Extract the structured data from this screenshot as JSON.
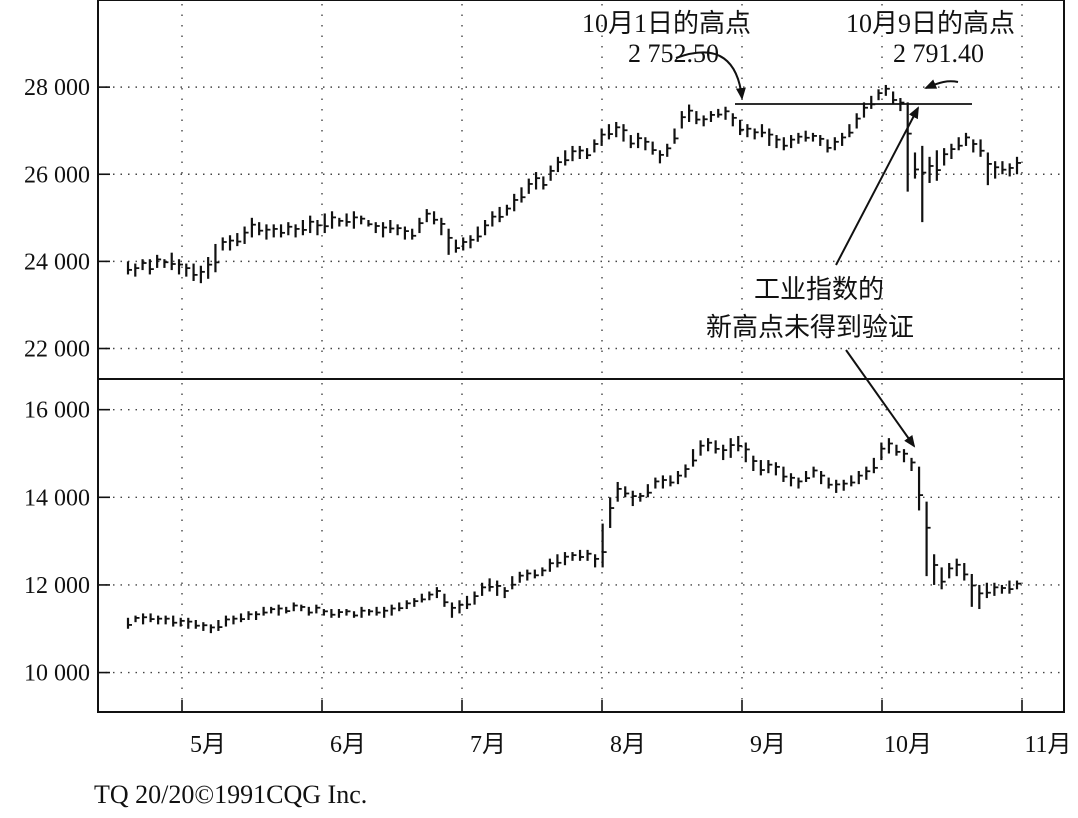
{
  "chart_data": [
    {
      "type": "bar",
      "subtype": "ohlc-range",
      "panel": "top",
      "title": "",
      "ylim": [
        21300,
        30000
      ],
      "yticks": [
        22000,
        24000,
        26000,
        28000
      ],
      "ytick_labels": [
        "22 000",
        "24 000",
        "26 000",
        "28 000"
      ],
      "grid": true,
      "bars": [
        [
          23700,
          24000
        ],
        [
          23650,
          23950
        ],
        [
          23800,
          24050
        ],
        [
          23700,
          24050
        ],
        [
          23850,
          24150
        ],
        [
          23850,
          24050
        ],
        [
          23800,
          24200
        ],
        [
          23700,
          24050
        ],
        [
          23650,
          23950
        ],
        [
          23550,
          23950
        ],
        [
          23500,
          23900
        ],
        [
          23600,
          24100
        ],
        [
          23750,
          24400
        ],
        [
          24250,
          24550
        ],
        [
          24250,
          24600
        ],
        [
          24350,
          24650
        ],
        [
          24400,
          24800
        ],
        [
          24550,
          25000
        ],
        [
          24600,
          24900
        ],
        [
          24500,
          24850
        ],
        [
          24550,
          24850
        ],
        [
          24550,
          24850
        ],
        [
          24600,
          24900
        ],
        [
          24550,
          24850
        ],
        [
          24600,
          24950
        ],
        [
          24650,
          25050
        ],
        [
          24600,
          24950
        ],
        [
          24650,
          25100
        ],
        [
          24750,
          25150
        ],
        [
          24800,
          25000
        ],
        [
          24800,
          25100
        ],
        [
          24750,
          25150
        ],
        [
          24850,
          25050
        ],
        [
          24800,
          24950
        ],
        [
          24650,
          24900
        ],
        [
          24550,
          24900
        ],
        [
          24650,
          24950
        ],
        [
          24600,
          24850
        ],
        [
          24500,
          24800
        ],
        [
          24500,
          24750
        ],
        [
          24650,
          25000
        ],
        [
          24900,
          25200
        ],
        [
          24850,
          25150
        ],
        [
          24600,
          25000
        ],
        [
          24150,
          24750
        ],
        [
          24200,
          24500
        ],
        [
          24250,
          24550
        ],
        [
          24300,
          24600
        ],
        [
          24450,
          24800
        ],
        [
          24600,
          24950
        ],
        [
          24800,
          25150
        ],
        [
          24900,
          25250
        ],
        [
          25050,
          25300
        ],
        [
          25150,
          25550
        ],
        [
          25350,
          25700
        ],
        [
          25550,
          25900
        ],
        [
          25650,
          26050
        ],
        [
          25650,
          25950
        ],
        [
          25850,
          26200
        ],
        [
          26050,
          26400
        ],
        [
          26200,
          26550
        ],
        [
          26300,
          26650
        ],
        [
          26350,
          26650
        ],
        [
          26350,
          26600
        ],
        [
          26500,
          26800
        ],
        [
          26650,
          27050
        ],
        [
          26800,
          27150
        ],
        [
          26850,
          27200
        ],
        [
          26750,
          27150
        ],
        [
          26600,
          26900
        ],
        [
          26600,
          26950
        ],
        [
          26550,
          26850
        ],
        [
          26450,
          26750
        ],
        [
          26250,
          26550
        ],
        [
          26400,
          26700
        ],
        [
          26700,
          27050
        ],
        [
          27050,
          27450
        ],
        [
          27200,
          27600
        ],
        [
          27150,
          27450
        ],
        [
          27100,
          27350
        ],
        [
          27200,
          27450
        ],
        [
          27300,
          27500
        ],
        [
          27250,
          27550
        ],
        [
          27100,
          27400
        ],
        [
          26900,
          27250
        ],
        [
          26850,
          27150
        ],
        [
          26800,
          27050
        ],
        [
          26850,
          27150
        ],
        [
          26650,
          27050
        ],
        [
          26600,
          26900
        ],
        [
          26550,
          26850
        ],
        [
          26600,
          26900
        ],
        [
          26700,
          26950
        ],
        [
          26750,
          27000
        ],
        [
          26750,
          26950
        ],
        [
          26650,
          26900
        ],
        [
          26500,
          26800
        ],
        [
          26550,
          26850
        ],
        [
          26650,
          26950
        ],
        [
          26850,
          27150
        ],
        [
          27050,
          27400
        ],
        [
          27300,
          27650
        ],
        [
          27500,
          27800
        ],
        [
          27700,
          27950
        ],
        [
          27800,
          28050
        ],
        [
          27600,
          27900
        ],
        [
          27450,
          27750
        ],
        [
          25600,
          27650
        ],
        [
          25900,
          26500
        ],
        [
          24900,
          26650
        ],
        [
          25800,
          26400
        ],
        [
          25850,
          26550
        ],
        [
          26200,
          26600
        ],
        [
          26350,
          26700
        ],
        [
          26550,
          26850
        ],
        [
          26650,
          26950
        ],
        [
          26500,
          26800
        ],
        [
          26400,
          26800
        ],
        [
          25750,
          26500
        ],
        [
          25900,
          26300
        ],
        [
          26000,
          26300
        ],
        [
          25950,
          26250
        ],
        [
          26000,
          26400
        ]
      ]
    },
    {
      "type": "bar",
      "subtype": "ohlc-range",
      "panel": "bottom",
      "title": "",
      "ylim": [
        9100,
        16700
      ],
      "yticks": [
        10000,
        12000,
        14000,
        16000
      ],
      "ytick_labels": [
        "10 000",
        "12 000",
        "14 000",
        "16 000"
      ],
      "grid": true,
      "bars": [
        [
          11000,
          11250
        ],
        [
          11150,
          11300
        ],
        [
          11100,
          11350
        ],
        [
          11150,
          11350
        ],
        [
          11100,
          11300
        ],
        [
          11100,
          11300
        ],
        [
          11050,
          11300
        ],
        [
          11050,
          11250
        ],
        [
          11000,
          11250
        ],
        [
          11000,
          11200
        ],
        [
          10950,
          11150
        ],
        [
          10900,
          11100
        ],
        [
          10950,
          11200
        ],
        [
          11050,
          11300
        ],
        [
          11100,
          11300
        ],
        [
          11150,
          11350
        ],
        [
          11200,
          11400
        ],
        [
          11200,
          11400
        ],
        [
          11300,
          11500
        ],
        [
          11350,
          11500
        ],
        [
          11300,
          11550
        ],
        [
          11350,
          11500
        ],
        [
          11400,
          11600
        ],
        [
          11400,
          11550
        ],
        [
          11300,
          11500
        ],
        [
          11350,
          11550
        ],
        [
          11300,
          11450
        ],
        [
          11250,
          11450
        ],
        [
          11250,
          11450
        ],
        [
          11300,
          11450
        ],
        [
          11250,
          11400
        ],
        [
          11250,
          11500
        ],
        [
          11300,
          11450
        ],
        [
          11300,
          11500
        ],
        [
          11250,
          11500
        ],
        [
          11300,
          11550
        ],
        [
          11400,
          11600
        ],
        [
          11450,
          11650
        ],
        [
          11500,
          11700
        ],
        [
          11600,
          11800
        ],
        [
          11650,
          11850
        ],
        [
          11700,
          11950
        ],
        [
          11500,
          11800
        ],
        [
          11250,
          11600
        ],
        [
          11350,
          11650
        ],
        [
          11450,
          11750
        ],
        [
          11550,
          11850
        ],
        [
          11750,
          12050
        ],
        [
          11850,
          12150
        ],
        [
          11750,
          12100
        ],
        [
          11700,
          11950
        ],
        [
          11900,
          12200
        ],
        [
          12050,
          12300
        ],
        [
          12100,
          12350
        ],
        [
          12150,
          12350
        ],
        [
          12200,
          12400
        ],
        [
          12300,
          12600
        ],
        [
          12400,
          12700
        ],
        [
          12450,
          12750
        ],
        [
          12550,
          12750
        ],
        [
          12550,
          12800
        ],
        [
          12550,
          12800
        ],
        [
          12400,
          12700
        ],
        [
          12400,
          13400
        ],
        [
          13300,
          14000
        ],
        [
          13900,
          14350
        ],
        [
          14000,
          14250
        ],
        [
          13800,
          14150
        ],
        [
          13900,
          14100
        ],
        [
          14000,
          14300
        ],
        [
          14200,
          14450
        ],
        [
          14200,
          14500
        ],
        [
          14250,
          14500
        ],
        [
          14300,
          14600
        ],
        [
          14450,
          14750
        ],
        [
          14700,
          15100
        ],
        [
          14950,
          15300
        ],
        [
          15050,
          15350
        ],
        [
          15000,
          15300
        ],
        [
          14850,
          15200
        ],
        [
          14900,
          15350
        ],
        [
          15050,
          15400
        ],
        [
          14800,
          15250
        ],
        [
          14600,
          14950
        ],
        [
          14500,
          14850
        ],
        [
          14550,
          14850
        ],
        [
          14500,
          14800
        ],
        [
          14350,
          14700
        ],
        [
          14250,
          14550
        ],
        [
          14200,
          14450
        ],
        [
          14350,
          14600
        ],
        [
          14450,
          14700
        ],
        [
          14300,
          14600
        ],
        [
          14200,
          14450
        ],
        [
          14100,
          14400
        ],
        [
          14150,
          14400
        ],
        [
          14250,
          14500
        ],
        [
          14300,
          14600
        ],
        [
          14400,
          14700
        ],
        [
          14550,
          14900
        ],
        [
          14850,
          15250
        ],
        [
          15000,
          15350
        ],
        [
          14950,
          15200
        ],
        [
          14800,
          15100
        ],
        [
          14600,
          14900
        ],
        [
          13700,
          14700
        ],
        [
          12200,
          13900
        ],
        [
          12000,
          12700
        ],
        [
          11900,
          12400
        ],
        [
          12150,
          12500
        ],
        [
          12200,
          12600
        ],
        [
          12100,
          12500
        ],
        [
          11500,
          12250
        ],
        [
          11450,
          12000
        ],
        [
          11700,
          12050
        ],
        [
          11750,
          12050
        ],
        [
          11800,
          12000
        ],
        [
          11800,
          12100
        ],
        [
          11900,
          12100
        ]
      ]
    }
  ],
  "x_axis": {
    "labels": [
      "5月",
      "6月",
      "7月",
      "8月",
      "9月",
      "10月",
      "11月"
    ]
  },
  "annotations": {
    "oct1_high_line1": "10月1日的高点",
    "oct1_high_line2": "2 752.50",
    "oct9_high_line1": "10月9日的高点",
    "oct9_high_line2": "2 791.40",
    "note_line1": "工业指数的",
    "note_line2": "新高点未得到验证"
  },
  "footer": "TQ 20/20©1991CQG Inc."
}
